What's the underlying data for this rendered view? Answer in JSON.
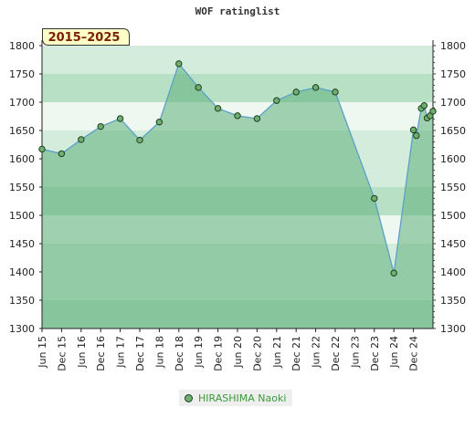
{
  "chart_data": {
    "type": "line",
    "title": "WOF ratinglist",
    "badge": "2015–2025",
    "ylim": [
      1300,
      1800
    ],
    "y_ticks": [
      1300,
      1350,
      1400,
      1450,
      1500,
      1550,
      1600,
      1650,
      1700,
      1750,
      1800
    ],
    "x_tick_labels": [
      "Jun 15",
      "Dec 15",
      "Jun 16",
      "Dec 16",
      "Jun 17",
      "Dec 17",
      "Jun 18",
      "Dec 18",
      "Jun 19",
      "Dec 19",
      "Jun 20",
      "Dec 20",
      "Jun 21",
      "Dec 21",
      "Jun 22",
      "Dec 22",
      "Jun 23",
      "Dec 23",
      "Jun 24",
      "Dec 24"
    ],
    "series": [
      {
        "name": "HIRASHIMA Naoki",
        "color": "#5aa0c8",
        "marker_color": "#6fae6f",
        "points": [
          {
            "t": 0,
            "v": 1617
          },
          {
            "t": 1,
            "v": 1609
          },
          {
            "t": 2,
            "v": 1634
          },
          {
            "t": 3,
            "v": 1657
          },
          {
            "t": 4,
            "v": 1671
          },
          {
            "t": 5,
            "v": 1633
          },
          {
            "t": 6,
            "v": 1665
          },
          {
            "t": 7,
            "v": 1768
          },
          {
            "t": 8,
            "v": 1726
          },
          {
            "t": 9,
            "v": 1689
          },
          {
            "t": 10,
            "v": 1676
          },
          {
            "t": 11,
            "v": 1671
          },
          {
            "t": 12,
            "v": 1703
          },
          {
            "t": 13,
            "v": 1718
          },
          {
            "t": 14,
            "v": 1726
          },
          {
            "t": 15,
            "v": 1718
          },
          {
            "t": 17,
            "v": 1530
          },
          {
            "t": 18,
            "v": 1398
          },
          {
            "t": 19,
            "v": 1651
          },
          {
            "t": 19.15,
            "v": 1641
          },
          {
            "t": 19.4,
            "v": 1689
          },
          {
            "t": 19.55,
            "v": 1694
          },
          {
            "t": 19.7,
            "v": 1672
          },
          {
            "t": 19.85,
            "v": 1676
          },
          {
            "t": 20,
            "v": 1684
          }
        ]
      }
    ],
    "legend_position": "bottom-center",
    "band_colors": {
      "dark": "#7cc495",
      "medium": "#96d1a9",
      "light": "#b8e0c5",
      "lighter": "#d4ecdc",
      "lightest": "#eef8f1"
    },
    "grid": false
  },
  "legend": {
    "label": "HIRASHIMA Naoki"
  }
}
